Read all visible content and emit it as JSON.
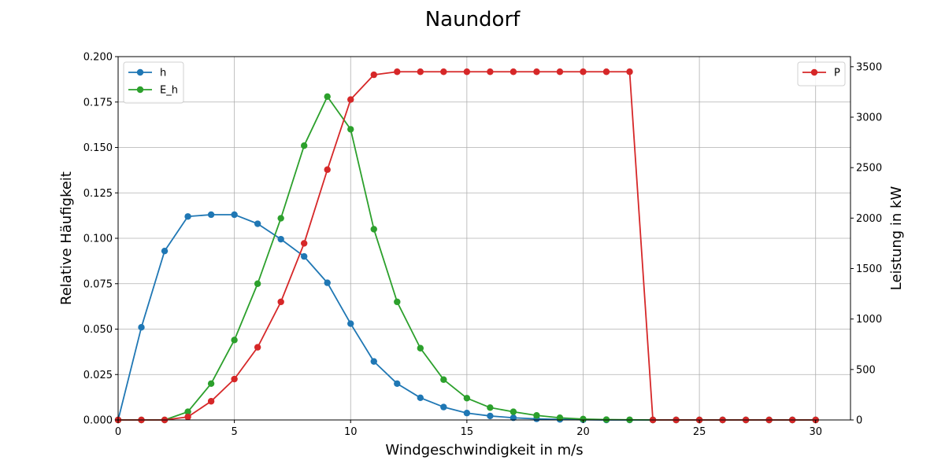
{
  "chart_data": {
    "type": "line",
    "title": "Naundorf",
    "xlabel": "Windgeschwindigkeit in m/s",
    "ylabel": "Relative Häufigkeit",
    "y2label": "Leistung in kW",
    "xlim": [
      0,
      31.5
    ],
    "ylim": [
      0,
      0.2
    ],
    "y2lim": [
      0,
      3600
    ],
    "grid": true,
    "x_ticks": [
      "0",
      "5",
      "10",
      "15",
      "20",
      "25",
      "30"
    ],
    "y_ticks": [
      "0.000",
      "0.025",
      "0.050",
      "0.075",
      "0.100",
      "0.125",
      "0.150",
      "0.175",
      "0.200"
    ],
    "y2_ticks": [
      "0",
      "500",
      "1000",
      "1500",
      "2000",
      "2500",
      "3000",
      "3500"
    ],
    "legend_left": {
      "placement": "top-left",
      "entries": [
        "h",
        "E_h"
      ]
    },
    "legend_right": {
      "placement": "top-right",
      "entries": [
        "P"
      ]
    },
    "x": [
      0,
      1,
      2,
      3,
      4,
      5,
      6,
      7,
      8,
      9,
      10,
      11,
      12,
      13,
      14,
      15,
      16,
      17,
      18,
      19,
      20,
      21,
      22,
      23,
      24,
      25,
      26,
      27,
      28,
      29,
      30
    ],
    "series": [
      {
        "name": "h",
        "axis": "left",
        "color": "#1f77b4",
        "values": [
          0.0,
          0.051,
          0.093,
          0.112,
          0.113,
          0.113,
          0.108,
          0.0995,
          0.09,
          0.0755,
          0.053,
          0.0322,
          0.02,
          0.0122,
          0.0071,
          0.0038,
          0.0022,
          0.0012,
          0.0006,
          0.0003,
          0.0001,
          0.0,
          0.0,
          0.0,
          0.0,
          0.0,
          0.0,
          0.0,
          0.0,
          0.0,
          0.0
        ]
      },
      {
        "name": "E_h",
        "axis": "left",
        "color": "#2ca02c",
        "values": [
          0.0,
          0.0,
          0.0,
          0.0045,
          0.02,
          0.044,
          0.075,
          0.111,
          0.151,
          0.178,
          0.16,
          0.105,
          0.065,
          0.0395,
          0.0222,
          0.012,
          0.0068,
          0.0045,
          0.0025,
          0.0012,
          0.0005,
          0.0002,
          0.0001,
          0.0,
          0.0,
          0.0,
          0.0,
          0.0,
          0.0,
          0.0,
          0.0
        ]
      },
      {
        "name": "P",
        "axis": "right",
        "color": "#d62728",
        "values": [
          0,
          0,
          0,
          30,
          185,
          405,
          720,
          1170,
          1750,
          2480,
          3175,
          3420,
          3450,
          3450,
          3450,
          3450,
          3450,
          3450,
          3450,
          3450,
          3450,
          3450,
          3450,
          0,
          0,
          0,
          0,
          0,
          0,
          0,
          0
        ]
      }
    ]
  }
}
